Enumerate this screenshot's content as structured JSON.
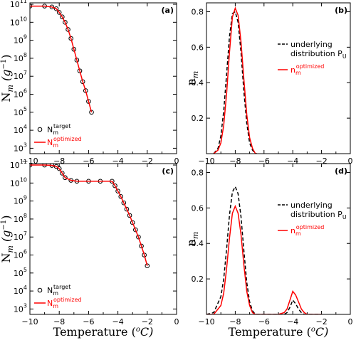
{
  "chart_data": [
    {
      "panel": "(a)",
      "type": "scatter",
      "xlim": [
        -10,
        0
      ],
      "ylog": true,
      "ylim_exp": [
        3,
        11
      ],
      "xticks": [
        -10,
        -8,
        -6,
        -4,
        -2,
        0
      ],
      "yticks_exp": [
        3,
        4,
        5,
        6,
        7,
        8,
        9,
        10,
        11
      ],
      "ylabel": "N_m (g^-1)",
      "legend": [
        {
          "base": "N",
          "sub": "m",
          "sup": "target",
          "style": "open-circle",
          "color": "#000000"
        },
        {
          "base": "N",
          "sub": "m",
          "sup": "optimized",
          "style": "line",
          "color": "#ff0000"
        }
      ],
      "series": [
        {
          "name": "N_m^target",
          "kind": "points",
          "x": [
            -10,
            -9.0,
            -8.5,
            -8.2,
            -8.0,
            -7.8,
            -7.6,
            -7.4,
            -7.2,
            -7.0,
            -6.8,
            -6.6,
            -6.4,
            -6.2,
            -6.0,
            -5.8
          ],
          "y_log10": [
            10.9,
            10.9,
            10.85,
            10.75,
            10.55,
            10.3,
            10.0,
            9.6,
            9.1,
            8.5,
            7.9,
            7.3,
            6.7,
            6.2,
            5.6,
            5.0
          ]
        },
        {
          "name": "N_m^optimized",
          "kind": "line",
          "x": [
            -10,
            -9.0,
            -8.5,
            -8.2,
            -8.0,
            -7.8,
            -7.6,
            -7.4,
            -7.2,
            -7.0,
            -6.8,
            -6.6,
            -6.4,
            -6.2,
            -6.0,
            -5.8
          ],
          "y_log10": [
            10.9,
            10.9,
            10.85,
            10.75,
            10.55,
            10.3,
            10.0,
            9.6,
            9.1,
            8.5,
            7.9,
            7.3,
            6.7,
            6.2,
            5.6,
            5.0
          ]
        }
      ]
    },
    {
      "panel": "(b)",
      "type": "line",
      "xlim": [
        -10,
        0
      ],
      "ylim": [
        0,
        0.85
      ],
      "xticks": [
        -10,
        -8,
        -6,
        -4,
        -2,
        0
      ],
      "yticks": [
        0.2,
        0.4,
        0.6,
        0.8
      ],
      "ylabel": "n_m",
      "legend": [
        {
          "text": "underlying distribution P_U",
          "style": "dashed",
          "color": "#000000"
        },
        {
          "base": "n",
          "sub": "m",
          "sup": "optimized",
          "style": "line",
          "color": "#ff0000"
        }
      ],
      "series": [
        {
          "name": "underlying distribution",
          "style": "dashed",
          "color": "#000000",
          "x": [
            -9.5,
            -9.2,
            -9.0,
            -8.8,
            -8.6,
            -8.4,
            -8.2,
            -8.0,
            -7.8,
            -7.6,
            -7.4,
            -7.2,
            -7.0,
            -6.8,
            -6.6,
            -6.5
          ],
          "y": [
            0.0,
            0.03,
            0.1,
            0.24,
            0.45,
            0.66,
            0.79,
            0.8,
            0.74,
            0.57,
            0.35,
            0.17,
            0.06,
            0.02,
            0.0,
            0.0
          ]
        },
        {
          "name": "n_m^optimized",
          "style": "solid",
          "color": "#ff0000",
          "x": [
            -9.5,
            -9.2,
            -9.0,
            -8.8,
            -8.6,
            -8.4,
            -8.2,
            -8.0,
            -7.8,
            -7.6,
            -7.4,
            -7.2,
            -7.0,
            -6.8,
            -6.6,
            -6.5
          ],
          "y": [
            0.0,
            0.02,
            0.06,
            0.16,
            0.34,
            0.57,
            0.77,
            0.82,
            0.78,
            0.63,
            0.42,
            0.22,
            0.09,
            0.03,
            0.0,
            0.0
          ]
        }
      ]
    },
    {
      "panel": "(c)",
      "type": "scatter",
      "xlim": [
        -10,
        0
      ],
      "ylog": true,
      "ylim_exp": [
        3,
        11
      ],
      "xticks": [
        -10,
        -8,
        -6,
        -4,
        -2,
        0
      ],
      "yticks_exp": [
        3,
        4,
        5,
        6,
        7,
        8,
        9,
        10,
        11
      ],
      "ylabel": "N_m (g^-1)",
      "legend": [
        {
          "base": "N",
          "sub": "m",
          "sup": "target",
          "style": "open-circle",
          "color": "#000000"
        },
        {
          "base": "N",
          "sub": "m",
          "sup": "optimized",
          "style": "line",
          "color": "#ff0000"
        }
      ],
      "series": [
        {
          "name": "N_m^target",
          "kind": "points",
          "x": [
            -10,
            -9.0,
            -8.5,
            -8.2,
            -8.0,
            -7.8,
            -7.6,
            -7.2,
            -6.8,
            -6.0,
            -5.2,
            -4.4,
            -4.2,
            -4.0,
            -3.8,
            -3.6,
            -3.4,
            -3.2,
            -3.0,
            -2.8,
            -2.6,
            -2.4,
            -2.2,
            -2.0
          ],
          "y_log10": [
            11.0,
            11.0,
            10.98,
            10.92,
            10.8,
            10.55,
            10.3,
            10.15,
            10.1,
            10.1,
            10.1,
            10.1,
            9.85,
            9.55,
            9.25,
            8.9,
            8.55,
            8.2,
            7.8,
            7.4,
            7.0,
            6.5,
            6.0,
            5.4
          ]
        },
        {
          "name": "N_m^optimized",
          "kind": "line",
          "x": [
            -10,
            -9.0,
            -8.5,
            -8.2,
            -8.0,
            -7.8,
            -7.6,
            -7.2,
            -6.8,
            -6.0,
            -5.2,
            -4.4,
            -4.2,
            -4.0,
            -3.8,
            -3.6,
            -3.4,
            -3.2,
            -3.0,
            -2.8,
            -2.6,
            -2.4,
            -2.2,
            -2.0
          ],
          "y_log10": [
            11.0,
            11.0,
            10.98,
            10.92,
            10.8,
            10.55,
            10.3,
            10.15,
            10.1,
            10.1,
            10.1,
            10.1,
            9.85,
            9.55,
            9.25,
            8.9,
            8.55,
            8.2,
            7.8,
            7.4,
            7.0,
            6.5,
            6.0,
            5.4
          ]
        }
      ]
    },
    {
      "panel": "(d)",
      "type": "line",
      "xlim": [
        -10,
        0
      ],
      "ylim": [
        0,
        0.85
      ],
      "xticks": [
        -10,
        -8,
        -6,
        -4,
        -2,
        0
      ],
      "yticks": [
        0.2,
        0.4,
        0.6,
        0.8
      ],
      "ylabel": "n_m",
      "legend": [
        {
          "text": "underlying distribution P_U",
          "style": "dashed",
          "color": "#000000"
        },
        {
          "base": "n",
          "sub": "m",
          "sup": "optimized",
          "style": "line",
          "color": "#ff0000"
        }
      ],
      "series": [
        {
          "name": "underlying distribution",
          "style": "dashed",
          "color": "#000000",
          "x": [
            -10.0,
            -9.5,
            -9.0,
            -8.8,
            -8.6,
            -8.4,
            -8.2,
            -8.0,
            -7.8,
            -7.6,
            -7.4,
            -7.2,
            -7.0,
            -6.8,
            -6.6,
            -6.4,
            -6.2,
            -6.0,
            -5.5,
            -5.0,
            -4.6,
            -4.4,
            -4.2,
            -4.0,
            -3.8,
            -3.6,
            -3.4,
            -3.2,
            -3.0,
            -2.0
          ],
          "y": [
            0.0,
            0.01,
            0.1,
            0.2,
            0.37,
            0.56,
            0.69,
            0.72,
            0.68,
            0.55,
            0.36,
            0.18,
            0.07,
            0.02,
            0.0,
            0.0,
            0.0,
            0.0,
            0.0,
            0.0,
            0.0,
            0.01,
            0.04,
            0.08,
            0.06,
            0.03,
            0.01,
            0.0,
            0.0,
            0.0
          ]
        },
        {
          "name": "n_m^optimized",
          "style": "solid",
          "color": "#ff0000",
          "x": [
            -10.0,
            -9.5,
            -9.0,
            -8.8,
            -8.6,
            -8.4,
            -8.2,
            -8.0,
            -7.8,
            -7.6,
            -7.4,
            -7.2,
            -7.0,
            -6.8,
            -6.6,
            -6.4,
            -6.2,
            -6.0,
            -5.5,
            -5.0,
            -4.6,
            -4.4,
            -4.2,
            -4.0,
            -3.8,
            -3.6,
            -3.4,
            -3.2,
            -3.0,
            -2.0
          ],
          "y": [
            0.0,
            0.0,
            0.05,
            0.12,
            0.26,
            0.43,
            0.57,
            0.61,
            0.57,
            0.45,
            0.28,
            0.13,
            0.05,
            0.01,
            0.0,
            0.0,
            0.0,
            0.0,
            0.0,
            0.0,
            0.01,
            0.03,
            0.08,
            0.13,
            0.11,
            0.07,
            0.03,
            0.01,
            0.0,
            0.0
          ]
        }
      ]
    }
  ],
  "labels": {
    "xlabel": "Temperature (^oC)",
    "xlabel_main": "Temperature",
    "xlabel_unit_open": "(",
    "xlabel_unit_sup": "o",
    "xlabel_unit_rest": "C)",
    "ylabel_left_main": "N",
    "ylabel_left_sub": "m",
    "ylabel_left_unit": "(g",
    "ylabel_left_unit_sup": "−1",
    "ylabel_left_close": ")",
    "ylabel_right_main": "n",
    "ylabel_right_sub": "m",
    "legend_underlying_line1": "underlying",
    "legend_underlying_line2": "distribution P",
    "legend_underlying_sub": "U",
    "legend_opt_base": "N",
    "legend_opt_sub": "m",
    "legend_opt_sup": "optimized",
    "legend_tgt_base": "N",
    "legend_tgt_sub": "m",
    "legend_tgt_sup": "target",
    "legend_nopt_base": "n",
    "legend_nopt_sub": "m",
    "legend_nopt_sup": "optimized"
  },
  "colors": {
    "red": "#ff0000",
    "black": "#000000"
  }
}
